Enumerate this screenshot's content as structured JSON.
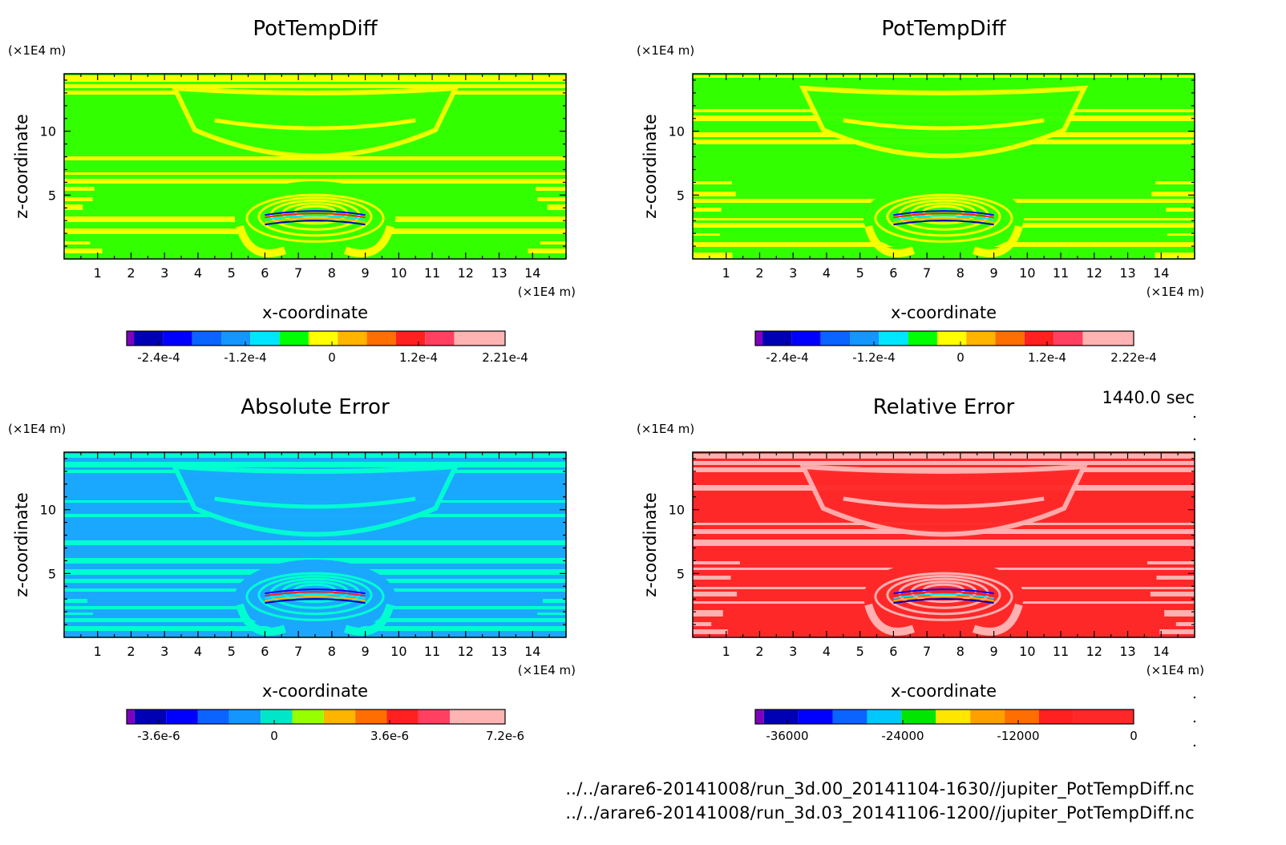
{
  "time_label": "1440.0 sec",
  "footer": [
    "../../arare6-20141008/run_3d.00_20141104-1630//jupiter_PotTempDiff.nc",
    "../../arare6-20141008/run_3d.03_20141106-1200//jupiter_PotTempDiff.nc"
  ],
  "chart_data": [
    {
      "type": "heatmap",
      "title": "PotTempDiff",
      "xlabel": "x-coordinate",
      "ylabel": "z-coordinate",
      "x_unit": "(×1E4 m)",
      "y_unit": "(×1E4 m)",
      "xlim": [
        0,
        15
      ],
      "ylim": [
        0,
        14.5
      ],
      "xticks": [
        1,
        2,
        3,
        4,
        5,
        6,
        7,
        8,
        9,
        10,
        11,
        12,
        13,
        14
      ],
      "yticks": [
        5,
        10
      ],
      "colorbar": {
        "colors": [
          "#8000c0",
          "#0000b4",
          "#0000ff",
          "#0a64ff",
          "#1496ff",
          "#00e6ff",
          "#00ff00",
          "#ffff00",
          "#ffb400",
          "#ff6e00",
          "#ff2020",
          "#ff4060",
          "#ffb4b4"
        ],
        "tick_labels": [
          "-2.4e-4",
          "-1.2e-4",
          "0",
          "1.2e-4",
          "2.21e-4"
        ]
      },
      "dominant_colors": [
        "#32ff00",
        "#f5ff00"
      ]
    },
    {
      "type": "heatmap",
      "title": "PotTempDiff",
      "xlabel": "x-coordinate",
      "ylabel": "z-coordinate",
      "x_unit": "(×1E4 m)",
      "y_unit": "(×1E4 m)",
      "xlim": [
        0,
        15
      ],
      "ylim": [
        0,
        14.5
      ],
      "xticks": [
        1,
        2,
        3,
        4,
        5,
        6,
        7,
        8,
        9,
        10,
        11,
        12,
        13,
        14
      ],
      "yticks": [
        5,
        10
      ],
      "colorbar": {
        "colors": [
          "#8000c0",
          "#0000b4",
          "#0000ff",
          "#0a64ff",
          "#1496ff",
          "#00e6ff",
          "#00ff00",
          "#ffff00",
          "#ffb400",
          "#ff6e00",
          "#ff2020",
          "#ff4060",
          "#ffb4b4"
        ],
        "tick_labels": [
          "-2.4e-4",
          "-1.2e-4",
          "0",
          "1.2e-4",
          "2.22e-4"
        ]
      },
      "dominant_colors": [
        "#32ff00",
        "#f5ff00"
      ]
    },
    {
      "type": "heatmap",
      "title": "Absolute Error",
      "xlabel": "x-coordinate",
      "ylabel": "z-coordinate",
      "x_unit": "(×1E4 m)",
      "y_unit": "(×1E4 m)",
      "xlim": [
        0,
        15
      ],
      "ylim": [
        0,
        14.5
      ],
      "xticks": [
        1,
        2,
        3,
        4,
        5,
        6,
        7,
        8,
        9,
        10,
        11,
        12,
        13,
        14
      ],
      "yticks": [
        5,
        10
      ],
      "colorbar": {
        "colors": [
          "#8000c0",
          "#0000b4",
          "#0000ff",
          "#0a64ff",
          "#1496ff",
          "#00e6c8",
          "#96ff00",
          "#ffb400",
          "#ff6e00",
          "#ff2020",
          "#ff4060",
          "#ffb4b4"
        ],
        "tick_labels": [
          "-3.6e-6",
          "0",
          "3.6e-6",
          "7.2e-6"
        ]
      },
      "dominant_colors": [
        "#1aa8ff",
        "#00ffd0"
      ]
    },
    {
      "type": "heatmap",
      "title": "Relative Error",
      "xlabel": "x-coordinate",
      "ylabel": "z-coordinate",
      "x_unit": "(×1E4 m)",
      "y_unit": "(×1E4 m)",
      "xlim": [
        0,
        15
      ],
      "ylim": [
        0,
        14.5
      ],
      "xticks": [
        1,
        2,
        3,
        4,
        5,
        6,
        7,
        8,
        9,
        10,
        11,
        12,
        13,
        14
      ],
      "yticks": [
        5,
        10
      ],
      "colorbar": {
        "colors": [
          "#8000c0",
          "#0000b4",
          "#0000ff",
          "#0a64ff",
          "#00c8ff",
          "#00e600",
          "#ffe600",
          "#ffa000",
          "#ff6e00",
          "#ff2020",
          "#ff2828"
        ],
        "tick_labels": [
          "-36000",
          "-24000",
          "-12000",
          "0"
        ]
      },
      "dominant_colors": [
        "#ff2828",
        "#ffb0b0"
      ]
    }
  ]
}
